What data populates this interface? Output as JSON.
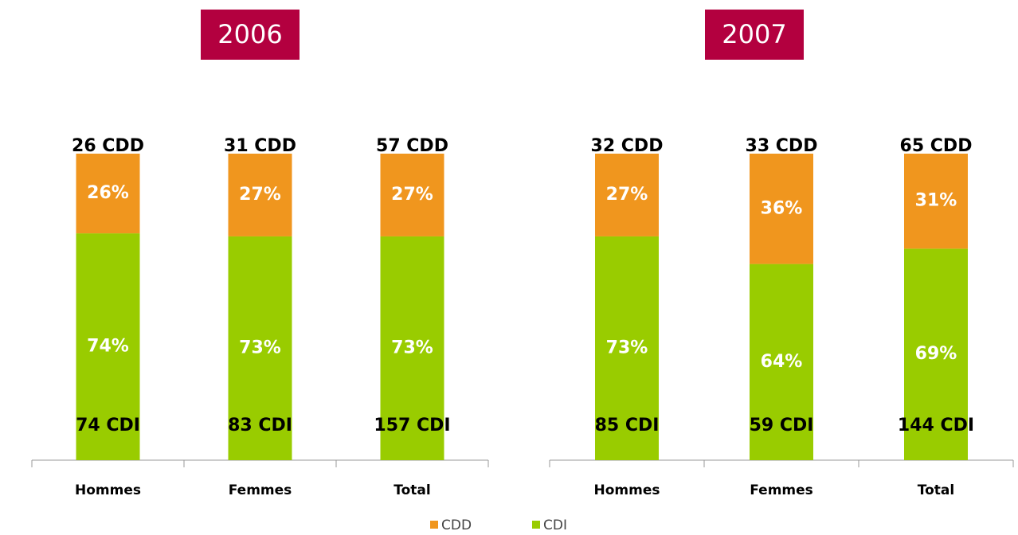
{
  "chart_data": [
    {
      "type": "bar",
      "stacked": true,
      "title": "2006",
      "categories": [
        "Hommes",
        "Femmes",
        "Total"
      ],
      "ylim": [
        0,
        100
      ],
      "series": [
        {
          "name": "CDI",
          "color": "#99cc00",
          "values": [
            74,
            73,
            73
          ],
          "value_labels": [
            "74%",
            "73%",
            "73%"
          ],
          "count_labels": [
            "74 CDI",
            "83 CDI",
            "157 CDI"
          ]
        },
        {
          "name": "CDD",
          "color": "#f0961e",
          "values": [
            26,
            27,
            27
          ],
          "value_labels": [
            "26%",
            "27%",
            "27%"
          ],
          "count_labels": [
            "26 CDD",
            "31 CDD",
            "57 CDD"
          ]
        }
      ]
    },
    {
      "type": "bar",
      "stacked": true,
      "title": "2007",
      "categories": [
        "Hommes",
        "Femmes",
        "Total"
      ],
      "ylim": [
        0,
        100
      ],
      "series": [
        {
          "name": "CDI",
          "color": "#99cc00",
          "values": [
            73,
            64,
            69
          ],
          "value_labels": [
            "73%",
            "64%",
            "69%"
          ],
          "count_labels": [
            "85 CDI",
            "59 CDI",
            "144 CDI"
          ]
        },
        {
          "name": "CDD",
          "color": "#f0961e",
          "values": [
            27,
            36,
            31
          ],
          "value_labels": [
            "27%",
            "36%",
            "31%"
          ],
          "count_labels": [
            "32 CDD",
            "33 CDD",
            "65 CDD"
          ]
        }
      ]
    }
  ]
}
